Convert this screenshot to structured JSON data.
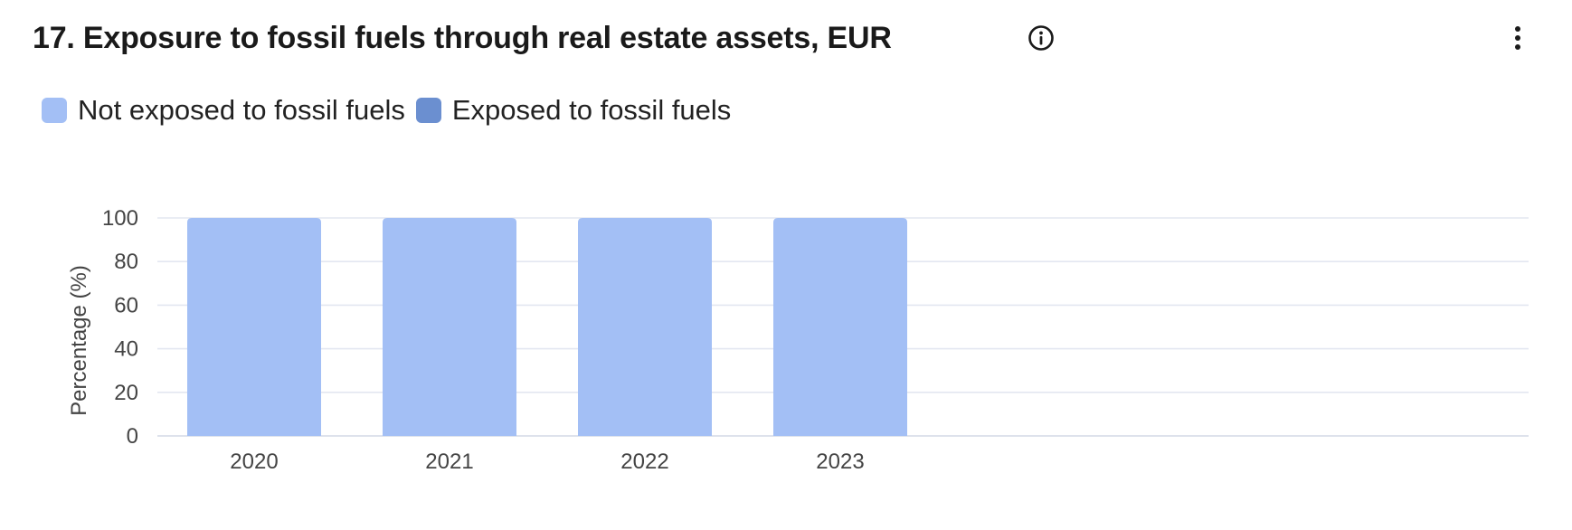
{
  "header": {
    "title": "17. Exposure to fossil fuels through real estate assets, EUR",
    "info_icon": "info-circle-icon",
    "menu_icon": "kebab-menu-icon"
  },
  "legend": [
    {
      "label": "Not exposed to fossil fuels",
      "color": "#a3bff5"
    },
    {
      "label": "Exposed to fossil fuels",
      "color": "#6b8fd0"
    }
  ],
  "chart_data": {
    "type": "bar",
    "stacked": true,
    "categories": [
      "2020",
      "2021",
      "2022",
      "2023"
    ],
    "series": [
      {
        "name": "Not exposed to fossil fuels",
        "values": [
          100,
          100,
          100,
          100
        ],
        "color": "#a3bff5"
      },
      {
        "name": "Exposed to fossil fuels",
        "values": [
          0,
          0,
          0,
          0
        ],
        "color": "#6b8fd0"
      }
    ],
    "ylabel": "Percentage (%)",
    "xlabel": "",
    "ylim": [
      0,
      100
    ],
    "yticks": [
      0,
      20,
      40,
      60,
      80,
      100
    ],
    "grid": true,
    "legend_position": "top-left"
  }
}
